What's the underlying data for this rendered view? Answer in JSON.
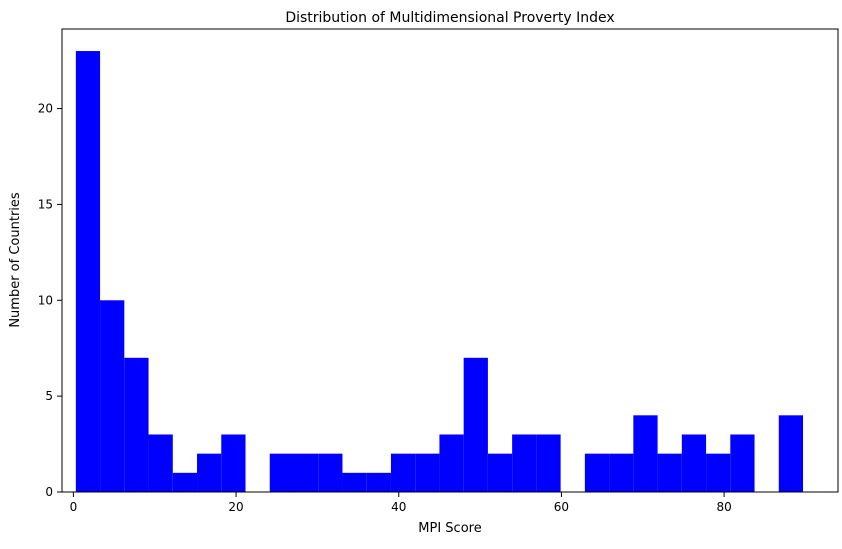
{
  "chart_data": {
    "type": "bar",
    "title": "Distribution of Multidimensional Proverty Index",
    "xlabel": "MPI Score",
    "ylabel": "Number of Countries",
    "xlim": [
      -1.4,
      94.0
    ],
    "ylim": [
      0,
      24.15
    ],
    "xticks": [
      0,
      20,
      40,
      60,
      80
    ],
    "yticks": [
      0,
      5,
      10,
      15,
      20
    ],
    "bin_start": 0.3,
    "bin_width": 2.98,
    "counts": [
      23,
      10,
      7,
      3,
      1,
      2,
      3,
      0,
      2,
      2,
      2,
      1,
      1,
      2,
      2,
      3,
      7,
      2,
      3,
      3,
      0,
      2,
      2,
      4,
      2,
      3,
      2,
      3,
      0,
      4
    ],
    "bar_color": "#0000ff",
    "grid": false,
    "legend": "none"
  }
}
